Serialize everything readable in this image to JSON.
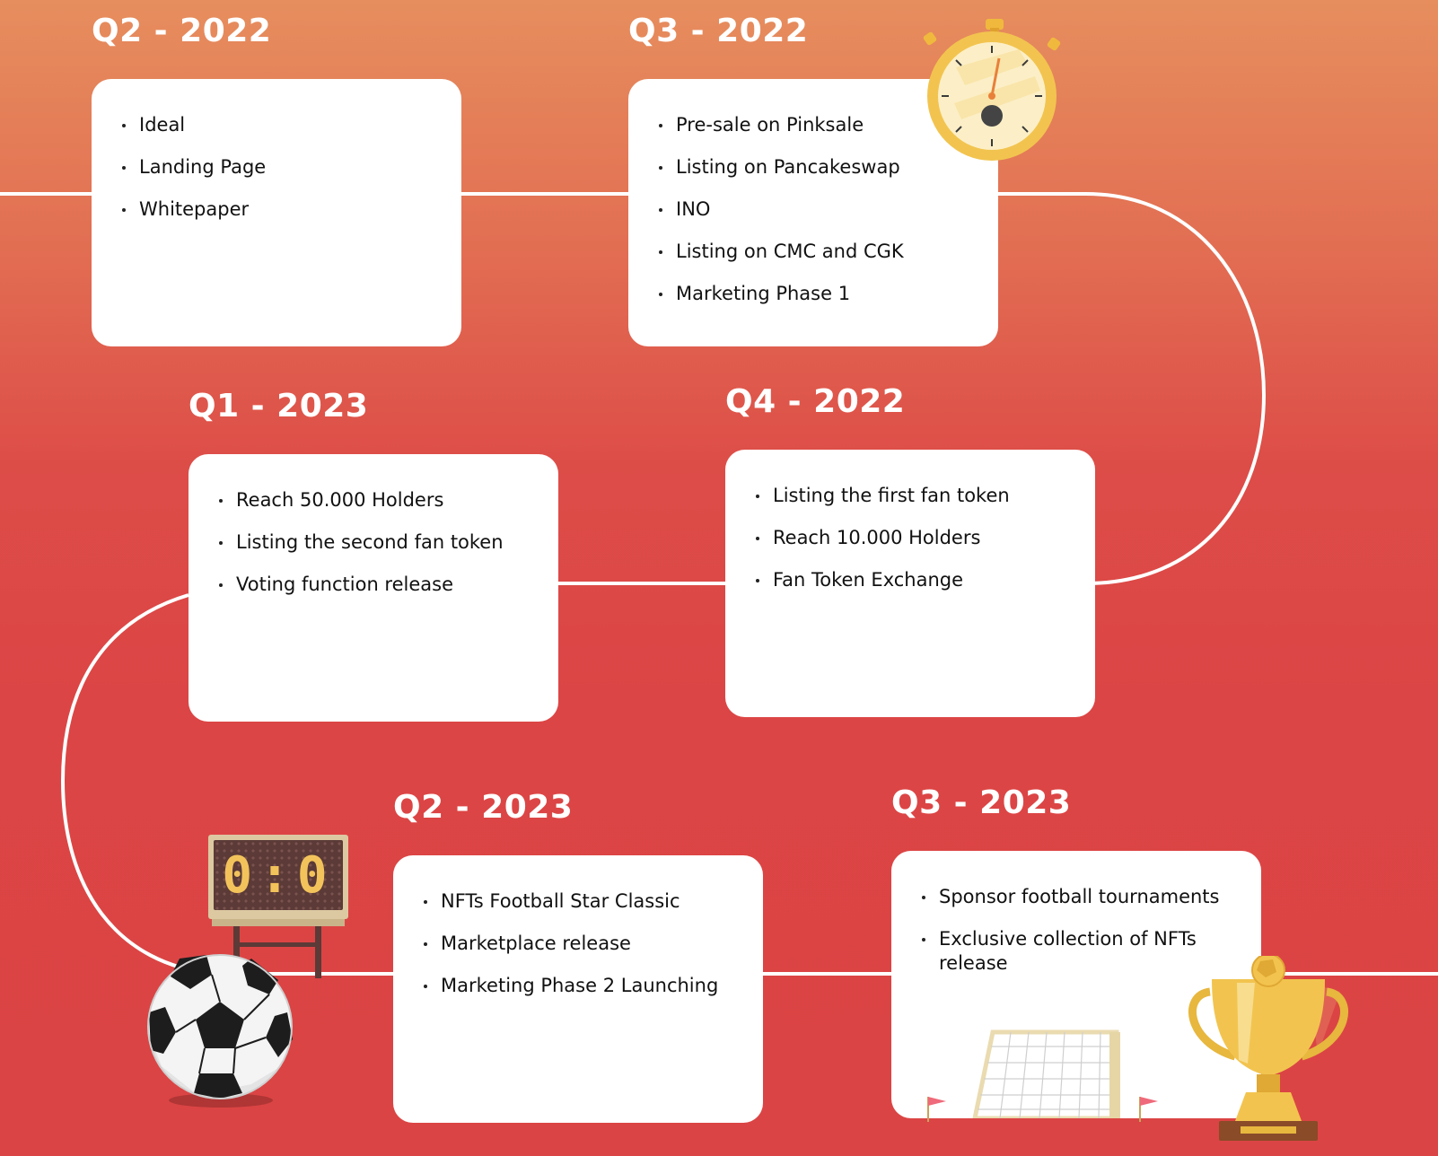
{
  "roadmap": [
    {
      "period": "Q2 - 2022",
      "items": [
        "Ideal",
        "Landing Page",
        "Whitepaper"
      ]
    },
    {
      "period": "Q3 - 2022",
      "items": [
        "Pre-sale on Pinksale",
        "Listing on Pancakeswap",
        "INO",
        "Listing on CMC and CGK",
        "Marketing Phase 1"
      ]
    },
    {
      "period": "Q1 - 2023",
      "items": [
        "Reach 50.000 Holders",
        "Listing the second fan token",
        "Voting function release"
      ]
    },
    {
      "period": "Q4 - 2022",
      "items": [
        "Listing the first fan token",
        "Reach 10.000 Holders",
        "Fan Token Exchange"
      ]
    },
    {
      "period": "Q2 - 2023",
      "items": [
        "NFTs Football Star Classic",
        "Marketplace release",
        "Marketing Phase 2 Launching"
      ]
    },
    {
      "period": "Q3 - 2023",
      "items": [
        "Sponsor football tournaments",
        "Exclusive collection of NFTs release"
      ]
    }
  ],
  "scoreboard": {
    "home": "0",
    "separator": ":",
    "away": "0"
  },
  "colors": {
    "background_top": "#e68e5e",
    "background_bottom": "#db4444",
    "card": "#ffffff",
    "path": "#ffffff",
    "gold": "#f2c44f"
  },
  "icons": [
    "stopwatch-icon",
    "scoreboard-icon",
    "soccer-ball-icon",
    "football-goal-icon",
    "trophy-icon",
    "corner-flag-icon"
  ]
}
